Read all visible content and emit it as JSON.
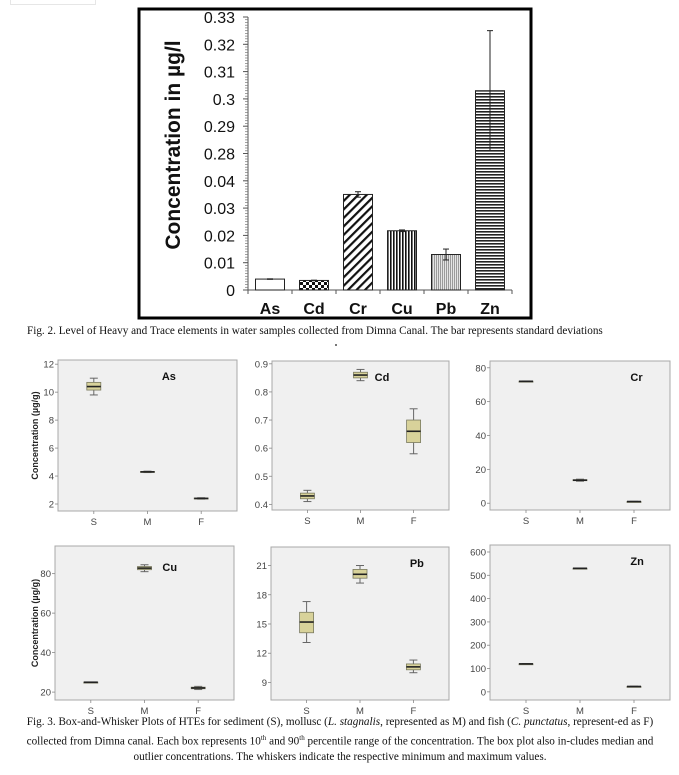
{
  "chart_data": [
    {
      "type": "bar",
      "title": "",
      "xlabel": "",
      "ylabel": "Concentration in µg/l",
      "categories": [
        "As",
        "Cd",
        "Cr",
        "Cu",
        "Pb",
        "Zn"
      ],
      "values": [
        0.004,
        0.0035,
        0.035,
        0.0217,
        0.013,
        0.303
      ],
      "errors": [
        0.0001,
        0.0001,
        0.001,
        0.0003,
        0.002,
        0.022
      ],
      "patterns": [
        "none",
        "checker",
        "diagonal",
        "vertical",
        "fine-vertical-gray",
        "horizontal"
      ],
      "yticks": [
        "0",
        "0.01",
        "0.02",
        "0.03",
        "0.04",
        "0.28",
        "0.29",
        "0.3",
        "0.31",
        "0.32",
        "0.33"
      ],
      "ytick_values": [
        0,
        0.01,
        0.02,
        0.03,
        0.04,
        0.28,
        0.29,
        0.3,
        0.31,
        0.32,
        0.33
      ],
      "axis_break": {
        "from": 0.04,
        "to": 0.28
      },
      "grid": false
    },
    {
      "type": "box",
      "title": "As",
      "ylabel": "Concentration (µg/g)",
      "categories": [
        "S",
        "M",
        "F"
      ],
      "yticks": [
        2,
        4,
        6,
        8,
        10,
        12
      ],
      "ylim": [
        1.5,
        12.3
      ],
      "boxes": [
        {
          "min": 9.8,
          "q1": 10.15,
          "median": 10.4,
          "q3": 10.7,
          "max": 11.0
        },
        {
          "min": 4.25,
          "q1": 4.28,
          "median": 4.3,
          "q3": 4.33,
          "max": 4.35
        },
        {
          "min": 2.35,
          "q1": 2.38,
          "median": 2.4,
          "q3": 2.43,
          "max": 2.45
        }
      ]
    },
    {
      "type": "box",
      "title": "Cd",
      "ylabel": "",
      "categories": [
        "S",
        "M",
        "F"
      ],
      "yticks": [
        0.4,
        0.5,
        0.6,
        0.7,
        0.8,
        0.9
      ],
      "ylim": [
        0.38,
        0.91
      ],
      "boxes": [
        {
          "min": 0.41,
          "q1": 0.42,
          "median": 0.43,
          "q3": 0.44,
          "max": 0.45
        },
        {
          "min": 0.84,
          "q1": 0.85,
          "median": 0.86,
          "q3": 0.87,
          "max": 0.88
        },
        {
          "min": 0.58,
          "q1": 0.62,
          "median": 0.66,
          "q3": 0.7,
          "max": 0.74
        }
      ]
    },
    {
      "type": "box",
      "title": "Cr",
      "ylabel": "",
      "categories": [
        "S",
        "M",
        "F"
      ],
      "yticks": [
        0,
        20,
        40,
        60,
        80
      ],
      "ylim": [
        -4,
        84
      ],
      "boxes": [
        {
          "min": 71.8,
          "q1": 71.9,
          "median": 72,
          "q3": 72.1,
          "max": 72.2
        },
        {
          "min": 13.0,
          "q1": 13.3,
          "median": 13.6,
          "q3": 13.9,
          "max": 14.2
        },
        {
          "min": 0.9,
          "q1": 0.95,
          "median": 1.0,
          "q3": 1.05,
          "max": 1.1
        }
      ]
    },
    {
      "type": "box",
      "title": "Cu",
      "ylabel": "Concentration (µg/g)",
      "categories": [
        "S",
        "M",
        "F"
      ],
      "yticks": [
        20,
        40,
        60,
        80
      ],
      "ylim": [
        16,
        94
      ],
      "boxes": [
        {
          "min": 24.9,
          "q1": 24.95,
          "median": 25,
          "q3": 25.05,
          "max": 25.1
        },
        {
          "min": 81,
          "q1": 82,
          "median": 82.8,
          "q3": 83.6,
          "max": 84.5
        },
        {
          "min": 21.3,
          "q1": 21.7,
          "median": 22.1,
          "q3": 22.5,
          "max": 22.9
        }
      ]
    },
    {
      "type": "box",
      "title": "Pb",
      "ylabel": "",
      "categories": [
        "S",
        "M",
        "F"
      ],
      "yticks": [
        9,
        12,
        15,
        18,
        21
      ],
      "ylim": [
        7.2,
        22.9
      ],
      "boxes": [
        {
          "min": 13.1,
          "q1": 14.1,
          "median": 15.2,
          "q3": 16.2,
          "max": 17.3
        },
        {
          "min": 19.2,
          "q1": 19.7,
          "median": 20.1,
          "q3": 20.6,
          "max": 21.0
        },
        {
          "min": 10.0,
          "q1": 10.3,
          "median": 10.6,
          "q3": 10.9,
          "max": 11.3
        }
      ]
    },
    {
      "type": "box",
      "title": "Zn",
      "ylabel": "",
      "categories": [
        "S",
        "M",
        "F"
      ],
      "yticks": [
        0,
        100,
        200,
        300,
        400,
        500,
        600
      ],
      "ylim": [
        -35,
        630
      ],
      "boxes": [
        {
          "min": 119,
          "q1": 119.5,
          "median": 120,
          "q3": 120.5,
          "max": 121
        },
        {
          "min": 529,
          "q1": 529.5,
          "median": 530,
          "q3": 530.5,
          "max": 531
        },
        {
          "min": 22,
          "q1": 22.5,
          "median": 23,
          "q3": 23.5,
          "max": 24
        }
      ]
    }
  ],
  "captions": {
    "fig2": "Fig. 2. Level of Heavy and Trace elements in water samples collected from Dimna Canal. The bar represents standard deviations",
    "fig3_a": "Fig. 3. Box-and-Whisker Plots of HTEs for sediment (S), mollusc (",
    "fig3_b": "L. stagnalis",
    "fig3_c": ", represented as M) and fish (",
    "fig3_d": "C. punctatus",
    "fig3_e": ", represent-ed as F) collected from Dimna canal. Each box represents 10",
    "fig3_sup1": "th",
    "fig3_f": " and 90",
    "fig3_sup2": "th",
    "fig3_g": " percentile range of the concentration. The box plot also in-cludes median and outlier concentrations. The whiskers indicate the respective minimum and maximum values."
  },
  "colors": {
    "box_fill": "#d8d29a",
    "box_stroke": "#7a7a60",
    "panel_bg": "#f0f0f0",
    "panel_border": "#a8a8a8",
    "axis_text": "#444444"
  }
}
